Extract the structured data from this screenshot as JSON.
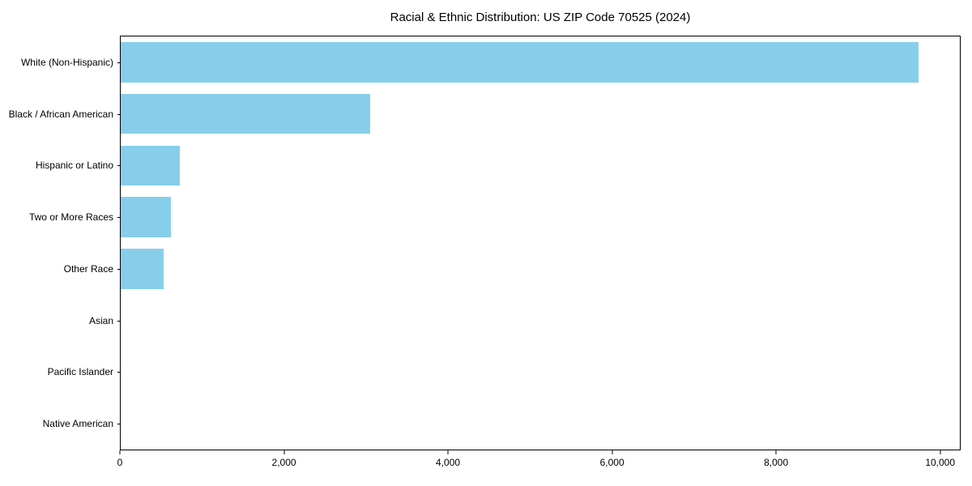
{
  "chart_data": {
    "type": "bar",
    "orientation": "horizontal",
    "title": "Racial & Ethnic Distribution: US ZIP Code 70525 (2024)",
    "categories": [
      "White (Non-Hispanic)",
      "Black / African American",
      "Hispanic or Latino",
      "Two or More Races",
      "Other Race",
      "Asian",
      "Pacific Islander",
      "Native American"
    ],
    "values": [
      9750,
      3050,
      720,
      610,
      520,
      0,
      0,
      0
    ],
    "xlabel": "",
    "ylabel": "",
    "xlim": [
      0,
      10250
    ],
    "x_ticks": [
      0,
      2000,
      4000,
      6000,
      8000,
      10000
    ],
    "x_tick_labels": [
      "0",
      "2,000",
      "4,000",
      "6,000",
      "8,000",
      "10,000"
    ],
    "bar_color": "#87CEEB",
    "axis_color": "#000000",
    "grid": false,
    "legend": null
  }
}
